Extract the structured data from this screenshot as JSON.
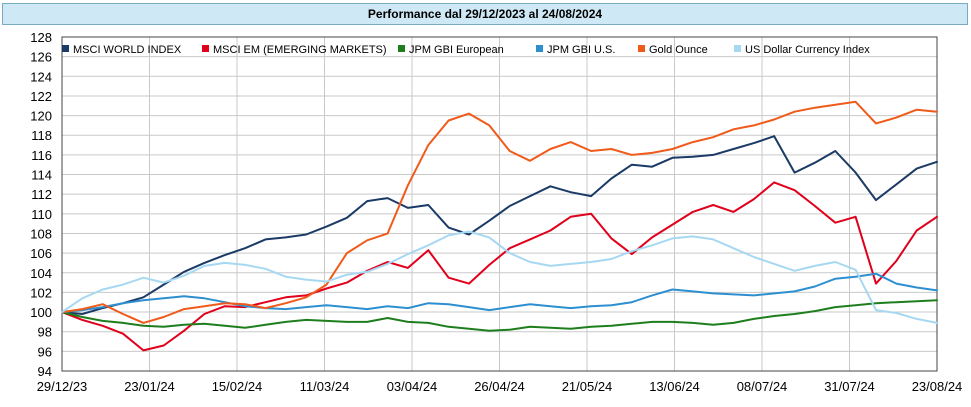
{
  "chart_data": {
    "type": "line",
    "title": "Performance dal 29/12/2023 al 24/08/2024",
    "xlabel": "",
    "ylabel": "",
    "ylim": [
      94,
      128
    ],
    "yticks": [
      94,
      96,
      98,
      100,
      102,
      104,
      106,
      108,
      110,
      112,
      114,
      116,
      118,
      120,
      122,
      124,
      126,
      128
    ],
    "x_tick_labels": [
      "29/12/23",
      "23/01/24",
      "15/02/24",
      "11/03/24",
      "03/04/24",
      "26/04/24",
      "21/05/24",
      "13/06/24",
      "08/07/24",
      "31/07/24",
      "23/08/24"
    ],
    "grid": true,
    "legend_position": "top-left",
    "series": [
      {
        "name": "MSCI WORLD INDEX",
        "color": "#1b3a66",
        "values": [
          100.0,
          99.8,
          100.4,
          100.9,
          101.5,
          102.8,
          104.1,
          105.0,
          105.8,
          106.5,
          107.4,
          107.6,
          107.9,
          108.7,
          109.6,
          111.3,
          111.6,
          110.6,
          110.9,
          108.6,
          107.9,
          109.3,
          110.8,
          111.8,
          112.8,
          112.2,
          111.8,
          113.6,
          115.0,
          114.8,
          115.7,
          115.8,
          116.0,
          116.6,
          117.2,
          117.9,
          114.2,
          115.2,
          116.4,
          114.2,
          111.4,
          113.0,
          114.6,
          115.3
        ]
      },
      {
        "name": "MSCI EM (EMERGING MARKETS)",
        "color": "#e0001b",
        "values": [
          100.0,
          99.2,
          98.6,
          97.8,
          96.1,
          96.6,
          98.1,
          99.8,
          100.6,
          100.5,
          101.0,
          101.5,
          101.7,
          102.4,
          103.0,
          104.2,
          105.1,
          104.5,
          106.3,
          103.5,
          102.9,
          104.8,
          106.5,
          107.4,
          108.3,
          109.7,
          110.0,
          107.5,
          105.9,
          107.6,
          108.9,
          110.2,
          110.9,
          110.2,
          111.5,
          113.2,
          112.4,
          110.8,
          109.1,
          109.7,
          102.9,
          105.2,
          108.3,
          109.7
        ]
      },
      {
        "name": "JPM GBI European",
        "color": "#1e7e1e",
        "values": [
          100.0,
          99.5,
          99.1,
          98.9,
          98.6,
          98.5,
          98.7,
          98.8,
          98.6,
          98.4,
          98.7,
          99.0,
          99.2,
          99.1,
          99.0,
          99.0,
          99.4,
          99.0,
          98.9,
          98.5,
          98.3,
          98.1,
          98.2,
          98.5,
          98.4,
          98.3,
          98.5,
          98.6,
          98.8,
          99.0,
          99.0,
          98.9,
          98.7,
          98.9,
          99.3,
          99.6,
          99.8,
          100.1,
          100.5,
          100.7,
          100.9,
          101.0,
          101.1,
          101.2
        ]
      },
      {
        "name": "JPM GBI U.S.",
        "color": "#2e8fd0",
        "values": [
          100.0,
          100.2,
          100.5,
          100.9,
          101.2,
          101.4,
          101.6,
          101.4,
          101.0,
          100.6,
          100.4,
          100.3,
          100.5,
          100.7,
          100.5,
          100.3,
          100.6,
          100.4,
          100.9,
          100.8,
          100.5,
          100.2,
          100.5,
          100.8,
          100.6,
          100.4,
          100.6,
          100.7,
          101.0,
          101.7,
          102.3,
          102.1,
          101.9,
          101.8,
          101.7,
          101.9,
          102.1,
          102.6,
          103.4,
          103.6,
          103.9,
          102.9,
          102.5,
          102.2
        ]
      },
      {
        "name": "Gold Ounce",
        "color": "#f05a1a",
        "values": [
          100.0,
          100.3,
          100.8,
          99.8,
          98.9,
          99.5,
          100.3,
          100.6,
          100.9,
          100.8,
          100.4,
          100.9,
          101.5,
          102.8,
          106.0,
          107.3,
          108.0,
          112.9,
          117.0,
          119.5,
          120.2,
          119.0,
          116.4,
          115.4,
          116.6,
          117.3,
          116.4,
          116.6,
          116.0,
          116.2,
          116.6,
          117.3,
          117.8,
          118.6,
          119.0,
          119.6,
          120.4,
          120.8,
          121.1,
          121.4,
          119.2,
          119.8,
          120.6,
          120.4
        ]
      },
      {
        "name": "US Dollar Currency Index",
        "color": "#a6d8f2",
        "values": [
          100.0,
          101.4,
          102.3,
          102.8,
          103.5,
          103.0,
          103.7,
          104.7,
          105.0,
          104.8,
          104.4,
          103.6,
          103.3,
          103.1,
          103.8,
          104.1,
          104.9,
          105.9,
          106.8,
          107.8,
          108.2,
          107.6,
          106.0,
          105.1,
          104.7,
          104.9,
          105.1,
          105.4,
          106.2,
          106.8,
          107.5,
          107.7,
          107.4,
          106.5,
          105.6,
          104.9,
          104.2,
          104.7,
          105.1,
          104.3,
          100.2,
          99.9,
          99.3,
          98.9
        ]
      }
    ]
  }
}
